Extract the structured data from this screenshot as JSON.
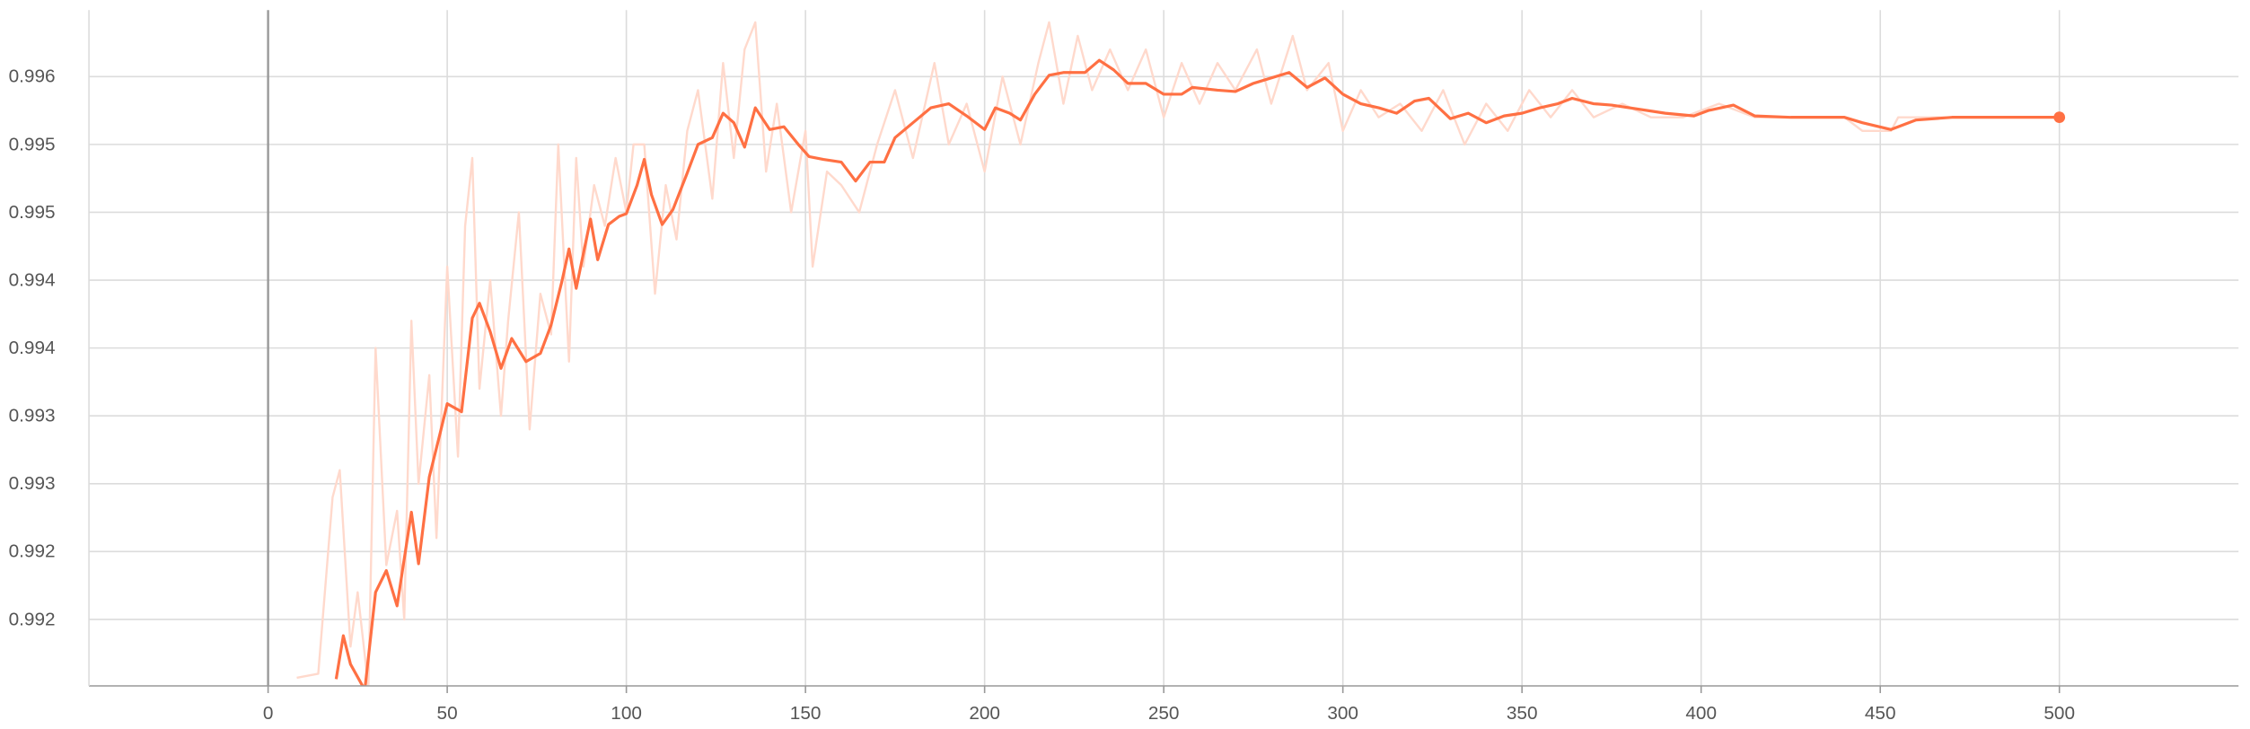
{
  "chart_data": {
    "type": "line",
    "xlim": [
      -50,
      550
    ],
    "xticks": [
      0,
      50,
      100,
      150,
      200,
      250,
      300,
      350,
      400,
      450,
      500
    ],
    "ylim": [
      0.99131,
      0.99629
    ],
    "yticks": [
      {
        "value": 0.9918,
        "label": "0.992"
      },
      {
        "value": 0.9923,
        "label": "0.992"
      },
      {
        "value": 0.9928,
        "label": "0.993"
      },
      {
        "value": 0.9933,
        "label": "0.993"
      },
      {
        "value": 0.9938,
        "label": "0.994"
      },
      {
        "value": 0.9943,
        "label": "0.994"
      },
      {
        "value": 0.9948,
        "label": "0.995"
      },
      {
        "value": 0.9953,
        "label": "0.995"
      },
      {
        "value": 0.9958,
        "label": "0.996"
      }
    ],
    "grid": true,
    "series": [
      {
        "color": "#ffd9cc",
        "x": [
          8,
          14,
          18,
          20,
          23,
          25,
          28,
          30,
          33,
          36,
          38,
          40,
          42,
          45,
          47,
          50,
          53,
          55,
          57,
          59,
          62,
          65,
          67,
          70,
          73,
          76,
          79,
          81,
          84,
          86,
          88,
          91,
          94,
          97,
          100,
          102,
          105,
          108,
          111,
          114,
          117,
          120,
          124,
          127,
          130,
          133,
          136,
          139,
          142,
          146,
          150,
          152,
          156,
          160,
          165,
          170,
          175,
          180,
          186,
          190,
          195,
          200,
          205,
          210,
          215,
          218,
          222,
          226,
          230,
          235,
          240,
          245,
          250,
          255,
          260,
          265,
          270,
          276,
          280,
          286,
          290,
          296,
          300,
          305,
          310,
          316,
          322,
          328,
          334,
          340,
          346,
          352,
          358,
          364,
          370,
          378,
          386,
          395,
          405,
          415,
          430,
          440,
          445,
          453,
          455,
          470,
          500
        ],
        "values": [
          0.99137,
          0.9914,
          0.9927,
          0.9929,
          0.9916,
          0.992,
          0.9913,
          0.9938,
          0.9922,
          0.9926,
          0.9918,
          0.994,
          0.9928,
          0.9936,
          0.9924,
          0.9944,
          0.993,
          0.9947,
          0.9952,
          0.9935,
          0.9943,
          0.9933,
          0.994,
          0.9948,
          0.9932,
          0.9942,
          0.9939,
          0.9953,
          0.9937,
          0.9952,
          0.9944,
          0.995,
          0.9947,
          0.9952,
          0.9948,
          0.9953,
          0.9953,
          0.9942,
          0.995,
          0.9946,
          0.9954,
          0.9957,
          0.9949,
          0.9959,
          0.9952,
          0.996,
          0.9962,
          0.9951,
          0.9956,
          0.9948,
          0.9954,
          0.9944,
          0.9951,
          0.995,
          0.9948,
          0.9953,
          0.9957,
          0.9952,
          0.9959,
          0.9953,
          0.9956,
          0.9951,
          0.9958,
          0.9953,
          0.9959,
          0.9962,
          0.9956,
          0.9961,
          0.9957,
          0.996,
          0.9957,
          0.996,
          0.9955,
          0.9959,
          0.9956,
          0.9959,
          0.9957,
          0.996,
          0.9956,
          0.9961,
          0.9957,
          0.9959,
          0.9954,
          0.9957,
          0.9955,
          0.9956,
          0.9954,
          0.9957,
          0.9953,
          0.9956,
          0.9954,
          0.9957,
          0.9955,
          0.9957,
          0.9955,
          0.9956,
          0.9955,
          0.9955,
          0.9956,
          0.9955,
          0.9955,
          0.9955,
          0.9954,
          0.9954,
          0.9955,
          0.9955,
          0.9955
        ]
      },
      {
        "color": "#ff7043",
        "x": [
          19,
          21,
          23,
          27,
          30,
          33,
          36,
          40,
          42,
          45,
          48,
          50,
          54,
          57,
          59,
          62,
          65,
          68,
          72,
          76,
          79,
          82,
          84,
          86,
          90,
          92,
          95,
          98,
          100,
          103,
          105,
          107,
          110,
          113,
          117,
          120,
          124,
          127,
          130,
          133,
          136,
          140,
          144,
          148,
          151,
          155,
          160,
          164,
          168,
          172,
          175,
          180,
          185,
          190,
          195,
          200,
          203,
          207,
          210,
          214,
          218,
          222,
          228,
          232,
          236,
          240,
          245,
          250,
          255,
          258,
          265,
          270,
          275,
          280,
          285,
          290,
          295,
          300,
          305,
          310,
          315,
          320,
          324,
          330,
          335,
          340,
          345,
          350,
          355,
          360,
          364,
          370,
          375,
          380,
          390,
          398,
          402,
          409,
          415,
          425,
          440,
          445,
          453,
          460,
          470,
          500
        ],
        "values": [
          0.99136,
          0.99168,
          0.99147,
          0.99128,
          0.992,
          0.99216,
          0.9919,
          0.99259,
          0.99221,
          0.99285,
          0.99317,
          0.99339,
          0.99333,
          0.99402,
          0.99413,
          0.99392,
          0.99365,
          0.99387,
          0.9937,
          0.99376,
          0.99397,
          0.99429,
          0.99453,
          0.99424,
          0.99475,
          0.99445,
          0.99471,
          0.99477,
          0.99479,
          0.995,
          0.99519,
          0.99493,
          0.99471,
          0.99482,
          0.99509,
          0.9953,
          0.99535,
          0.99553,
          0.99546,
          0.99528,
          0.99557,
          0.99541,
          0.99543,
          0.9953,
          0.99521,
          0.99519,
          0.99517,
          0.99503,
          0.99517,
          0.99517,
          0.99535,
          0.99546,
          0.99557,
          0.9956,
          0.99551,
          0.99541,
          0.99557,
          0.99553,
          0.99548,
          0.99567,
          0.99581,
          0.99583,
          0.99583,
          0.99592,
          0.99585,
          0.99575,
          0.99575,
          0.99567,
          0.99567,
          0.99572,
          0.9957,
          0.99569,
          0.99575,
          0.99579,
          0.99583,
          0.99572,
          0.99579,
          0.99567,
          0.9956,
          0.99557,
          0.99553,
          0.99562,
          0.99564,
          0.99549,
          0.99553,
          0.99546,
          0.99551,
          0.99553,
          0.99557,
          0.9956,
          0.99564,
          0.9956,
          0.99559,
          0.99557,
          0.99553,
          0.99551,
          0.99555,
          0.99559,
          0.99551,
          0.9955,
          0.9955,
          0.99546,
          0.99541,
          0.99548,
          0.9955,
          0.9955
        ]
      }
    ]
  }
}
